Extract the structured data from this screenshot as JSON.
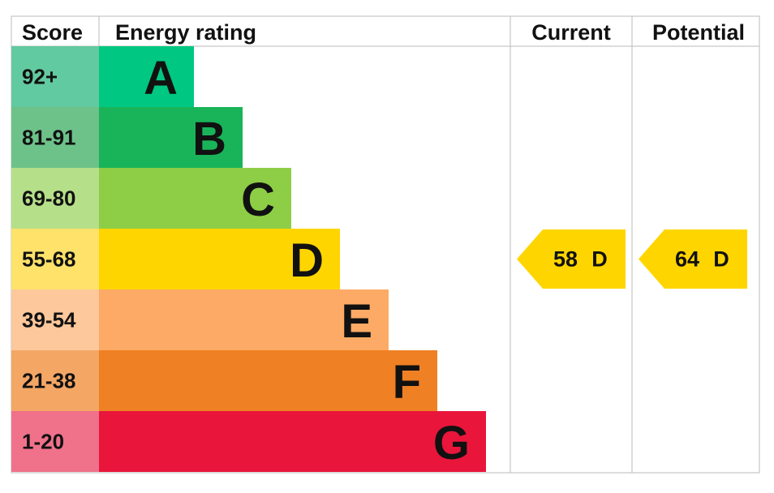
{
  "header": {
    "score": "Score",
    "rating": "Energy rating",
    "current": "Current",
    "potential": "Potential"
  },
  "bands": [
    {
      "score": "92+",
      "letter": "A",
      "color": "#00c781",
      "light": "#62caa0"
    },
    {
      "score": "81-91",
      "letter": "B",
      "color": "#19b459",
      "light": "#6dc28a"
    },
    {
      "score": "69-80",
      "letter": "C",
      "color": "#8dce46",
      "light": "#b6df89"
    },
    {
      "score": "55-68",
      "letter": "D",
      "color": "#ffd500",
      "light": "#ffe26a"
    },
    {
      "score": "39-54",
      "letter": "E",
      "color": "#fcaa65",
      "light": "#fdc89b"
    },
    {
      "score": "21-38",
      "letter": "F",
      "color": "#ef8023",
      "light": "#f4a665"
    },
    {
      "score": "1-20",
      "letter": "G",
      "color": "#e9153b",
      "light": "#f0718a"
    }
  ],
  "current": {
    "score": "58",
    "letter": "D"
  },
  "potential": {
    "score": "64",
    "letter": "D"
  }
}
